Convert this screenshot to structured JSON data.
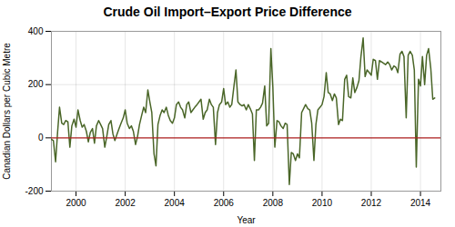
{
  "chart_data": {
    "type": "line",
    "title": "Crude Oil Import–Export Price Difference",
    "xlabel": "Year",
    "ylabel": "Canadian Dollars per Cubic Metre",
    "xlim": [
      1999.0,
      2014.83
    ],
    "ylim": [
      -200,
      400
    ],
    "xticks": [
      2000,
      2002,
      2004,
      2006,
      2008,
      2010,
      2012,
      2014
    ],
    "yticks": [
      -200,
      0,
      200,
      400
    ],
    "grid": true,
    "color": "#4a6628",
    "reference_line": {
      "y": 0,
      "color": "#b22222"
    },
    "x": [
      1999.0,
      1999.08,
      1999.17,
      1999.25,
      1999.33,
      1999.42,
      1999.5,
      1999.58,
      1999.67,
      1999.75,
      1999.83,
      1999.92,
      2000.0,
      2000.08,
      2000.17,
      2000.25,
      2000.33,
      2000.42,
      2000.5,
      2000.58,
      2000.67,
      2000.75,
      2000.83,
      2000.92,
      2001.0,
      2001.08,
      2001.17,
      2001.25,
      2001.33,
      2001.42,
      2001.5,
      2001.58,
      2001.67,
      2001.75,
      2001.83,
      2001.92,
      2002.0,
      2002.08,
      2002.17,
      2002.25,
      2002.33,
      2002.42,
      2002.5,
      2002.58,
      2002.67,
      2002.75,
      2002.83,
      2002.92,
      2003.0,
      2003.08,
      2003.17,
      2003.25,
      2003.33,
      2003.42,
      2003.5,
      2003.58,
      2003.67,
      2003.75,
      2003.83,
      2003.92,
      2004.0,
      2004.08,
      2004.17,
      2004.25,
      2004.33,
      2004.42,
      2004.5,
      2004.58,
      2004.67,
      2004.75,
      2004.83,
      2004.92,
      2005.0,
      2005.08,
      2005.17,
      2005.25,
      2005.33,
      2005.42,
      2005.5,
      2005.58,
      2005.67,
      2005.75,
      2005.83,
      2005.92,
      2006.0,
      2006.08,
      2006.17,
      2006.25,
      2006.33,
      2006.42,
      2006.5,
      2006.58,
      2006.67,
      2006.75,
      2006.83,
      2006.92,
      2007.0,
      2007.08,
      2007.17,
      2007.25,
      2007.33,
      2007.42,
      2007.5,
      2007.58,
      2007.67,
      2007.75,
      2007.83,
      2007.92,
      2008.0,
      2008.08,
      2008.17,
      2008.25,
      2008.33,
      2008.42,
      2008.5,
      2008.58,
      2008.67,
      2008.75,
      2008.83,
      2008.92,
      2009.0,
      2009.08,
      2009.17,
      2009.25,
      2009.33,
      2009.42,
      2009.5,
      2009.58,
      2009.67,
      2009.75,
      2009.83,
      2009.92,
      2010.0,
      2010.08,
      2010.17,
      2010.25,
      2010.33,
      2010.42,
      2010.5,
      2010.58,
      2010.67,
      2010.75,
      2010.83,
      2010.92,
      2011.0,
      2011.08,
      2011.17,
      2011.25,
      2011.33,
      2011.42,
      2011.5,
      2011.58,
      2011.67,
      2011.75,
      2011.83,
      2011.92,
      2012.0,
      2012.08,
      2012.17,
      2012.25,
      2012.33,
      2012.42,
      2012.5,
      2012.58,
      2012.67,
      2012.75,
      2012.83,
      2012.92,
      2013.0,
      2013.08,
      2013.17,
      2013.25,
      2013.33,
      2013.42,
      2013.5,
      2013.58,
      2013.67,
      2013.75,
      2013.83,
      2013.92,
      2014.0,
      2014.08,
      2014.17,
      2014.25,
      2014.33,
      2014.42,
      2014.5,
      2014.58
    ],
    "values": [
      -5,
      -10,
      -90,
      20,
      115,
      55,
      50,
      65,
      60,
      -35,
      45,
      70,
      40,
      105,
      65,
      40,
      50,
      25,
      -15,
      20,
      35,
      -20,
      45,
      65,
      50,
      35,
      -35,
      5,
      50,
      65,
      15,
      -10,
      15,
      35,
      55,
      75,
      105,
      55,
      35,
      45,
      25,
      -25,
      5,
      50,
      85,
      115,
      95,
      180,
      135,
      95,
      -60,
      -105,
      50,
      85,
      105,
      95,
      115,
      85,
      65,
      55,
      75,
      125,
      135,
      115,
      105,
      75,
      125,
      135,
      95,
      105,
      115,
      125,
      135,
      145,
      70,
      95,
      105,
      145,
      125,
      115,
      -25,
      95,
      125,
      135,
      185,
      125,
      135,
      115,
      125,
      195,
      255,
      135,
      125,
      120,
      125,
      105,
      125,
      110,
      90,
      -85,
      105,
      105,
      115,
      130,
      195,
      45,
      55,
      335,
      190,
      -35,
      65,
      60,
      45,
      35,
      55,
      50,
      -175,
      -55,
      -60,
      -85,
      -60,
      -75,
      95,
      110,
      125,
      110,
      105,
      55,
      -85,
      50,
      105,
      115,
      125,
      155,
      245,
      170,
      165,
      140,
      165,
      150,
      50,
      70,
      65,
      220,
      235,
      155,
      150,
      225,
      170,
      190,
      215,
      305,
      375,
      230,
      255,
      245,
      235,
      295,
      290,
      220,
      290,
      285,
      280,
      275,
      285,
      275,
      255,
      270,
      265,
      245,
      315,
      325,
      305,
      75,
      310,
      325,
      310,
      255,
      -110,
      220,
      195,
      305,
      200,
      310,
      335,
      260,
      145,
      150
    ]
  }
}
